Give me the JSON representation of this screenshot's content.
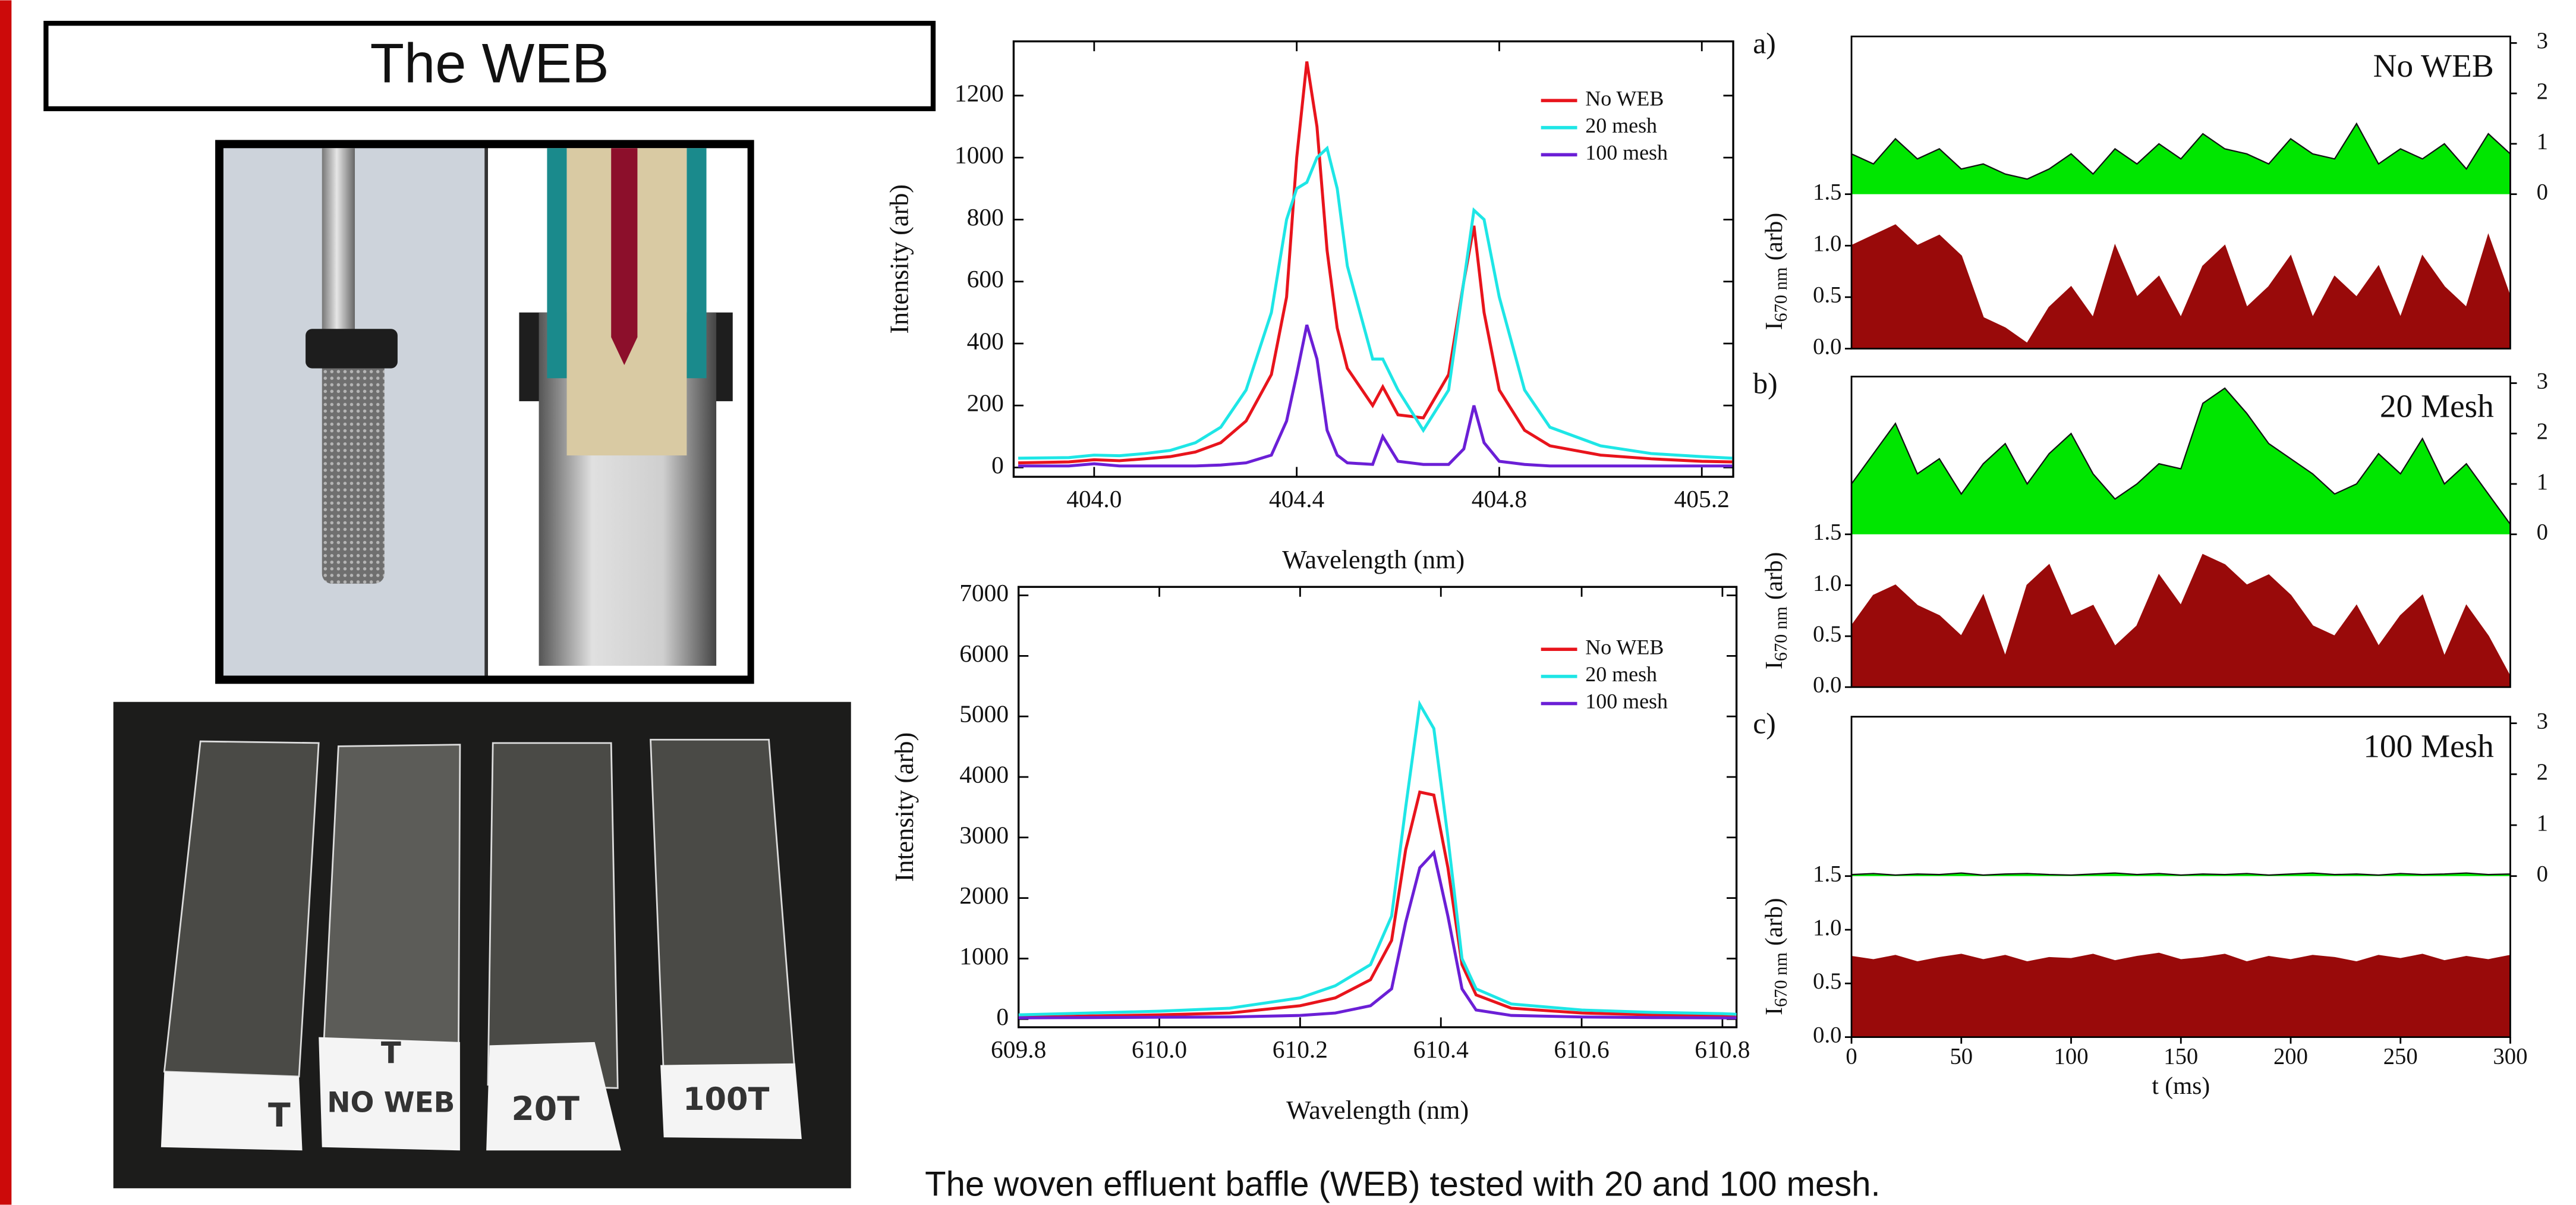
{
  "header": {
    "title": "The WEB"
  },
  "slide_top_label": "T",
  "slide_labels": [
    "T",
    "NO WEB",
    "20T",
    "100T"
  ],
  "caption": "The woven effluent baffle (WEB) tested with 20 and 100 mesh.",
  "chart_data": [
    {
      "type": "line",
      "x_label": "Wavelength (nm)",
      "y_label": "Intensity (arb)",
      "xlim": [
        403.841,
        405.262
      ],
      "ylim": [
        -30,
        1375
      ],
      "xticks": [
        {
          "value": 404,
          "label": "404.0"
        },
        404.4,
        404.8,
        405.2
      ],
      "yticks": [
        0,
        200,
        400,
        600,
        800,
        1000,
        1200
      ],
      "x": [
        403.85,
        403.95,
        404.0,
        404.05,
        404.1,
        404.15,
        404.2,
        404.25,
        404.3,
        404.35,
        404.38,
        404.4,
        404.42,
        404.44,
        404.46,
        404.48,
        404.5,
        404.55,
        404.57,
        404.6,
        404.65,
        404.7,
        404.73,
        404.75,
        404.77,
        404.8,
        404.85,
        404.9,
        405.0,
        405.1,
        405.2,
        405.26
      ],
      "series": [
        {
          "name": "No WEB",
          "color": "#e8141c",
          "values": [
            15,
            18,
            25,
            22,
            28,
            35,
            50,
            80,
            150,
            300,
            550,
            1000,
            1310,
            1100,
            700,
            450,
            320,
            200,
            260,
            170,
            160,
            300,
            600,
            780,
            500,
            250,
            120,
            70,
            40,
            28,
            20,
            18
          ]
        },
        {
          "name": "20 mesh",
          "color": "#1ee6e6",
          "values": [
            30,
            32,
            40,
            38,
            45,
            55,
            80,
            130,
            250,
            500,
            800,
            900,
            920,
            1000,
            1030,
            900,
            650,
            350,
            350,
            250,
            120,
            250,
            600,
            830,
            800,
            550,
            250,
            130,
            70,
            45,
            35,
            30
          ]
        },
        {
          "name": "100 mesh",
          "color": "#6b1fd6",
          "values": [
            5,
            5,
            12,
            5,
            5,
            5,
            5,
            8,
            15,
            40,
            150,
            300,
            460,
            350,
            120,
            40,
            15,
            10,
            100,
            20,
            10,
            10,
            60,
            200,
            80,
            20,
            10,
            5,
            5,
            5,
            5,
            5
          ]
        }
      ]
    },
    {
      "type": "line",
      "x_label": "Wavelength (nm)",
      "y_label": "Intensity (arb)",
      "xlim": [
        609.8,
        610.82
      ],
      "ylim": [
        -135,
        7140
      ],
      "xticks": [
        609.8,
        {
          "value": 610,
          "label": "610.0"
        },
        610.2,
        610.4,
        610.6,
        610.8
      ],
      "yticks": [
        0,
        1000,
        2000,
        3000,
        4000,
        5000,
        6000,
        7000
      ],
      "x": [
        609.8,
        609.9,
        610.0,
        610.1,
        610.2,
        610.25,
        610.3,
        610.33,
        610.35,
        610.37,
        610.39,
        610.41,
        610.43,
        610.45,
        610.5,
        610.6,
        610.7,
        610.8,
        610.82
      ],
      "series": [
        {
          "name": "No WEB",
          "color": "#e8141c",
          "values": [
            30,
            50,
            70,
            100,
            220,
            350,
            650,
            1300,
            2800,
            3750,
            3700,
            2500,
            900,
            400,
            180,
            100,
            70,
            50,
            50
          ]
        },
        {
          "name": "20 mesh",
          "color": "#1ee6e6",
          "values": [
            70,
            100,
            130,
            180,
            350,
            550,
            900,
            1700,
            3500,
            5200,
            4800,
            3000,
            1000,
            500,
            250,
            150,
            110,
            90,
            80
          ]
        },
        {
          "name": "100 mesh",
          "color": "#6b1fd6",
          "values": [
            20,
            25,
            30,
            35,
            60,
            100,
            220,
            500,
            1600,
            2500,
            2750,
            1700,
            500,
            150,
            60,
            35,
            25,
            20,
            20
          ]
        }
      ]
    },
    {
      "type": "area",
      "panel_label": "a)",
      "title": "No WEB",
      "y_label": "I",
      "y_label_sub": "670 nm",
      "y_label_unit": "(arb)",
      "xlim": [
        0,
        300
      ],
      "ylim": [
        0,
        1.5
      ],
      "yticks": [
        {
          "value": 0,
          "label": "0.0"
        },
        0.5,
        {
          "value": 1,
          "label": "1.0"
        },
        1.5
      ],
      "y2lim": [
        0,
        3
      ],
      "y2ticks": [
        0,
        1,
        2,
        3
      ],
      "x": [
        0,
        10,
        20,
        30,
        40,
        50,
        60,
        70,
        80,
        90,
        100,
        110,
        120,
        130,
        140,
        150,
        160,
        170,
        180,
        190,
        200,
        210,
        220,
        230,
        240,
        250,
        260,
        270,
        280,
        290,
        300
      ],
      "series": [
        {
          "color": "#00e600",
          "axis": "y2",
          "values": [
            0.8,
            0.6,
            1.1,
            0.7,
            0.9,
            0.5,
            0.6,
            0.4,
            0.3,
            0.5,
            0.8,
            0.4,
            0.9,
            0.6,
            1.0,
            0.7,
            1.2,
            0.9,
            0.8,
            0.6,
            1.1,
            0.8,
            0.7,
            1.4,
            0.6,
            0.9,
            0.7,
            1.0,
            0.5,
            1.2,
            0.8
          ]
        },
        {
          "color": "#990a0a",
          "values": [
            1.0,
            1.1,
            1.2,
            1.0,
            1.1,
            0.9,
            0.3,
            0.2,
            0.05,
            0.4,
            0.6,
            0.3,
            1.0,
            0.5,
            0.7,
            0.3,
            0.8,
            1.0,
            0.4,
            0.6,
            0.9,
            0.3,
            0.7,
            0.5,
            0.8,
            0.3,
            0.9,
            0.6,
            0.4,
            1.1,
            0.5
          ]
        }
      ]
    },
    {
      "type": "area",
      "panel_label": "b)",
      "title": "20 Mesh",
      "y_label": "I",
      "y_label_sub": "670 nm",
      "y_label_unit": "(arb)",
      "xlim": [
        0,
        300
      ],
      "ylim": [
        0,
        1.5
      ],
      "yticks": [
        {
          "value": 0,
          "label": "0.0"
        },
        0.5,
        {
          "value": 1,
          "label": "1.0"
        },
        1.5
      ],
      "y2lim": [
        0,
        3
      ],
      "y2ticks": [
        0,
        1,
        2,
        3
      ],
      "x": [
        0,
        10,
        20,
        30,
        40,
        50,
        60,
        70,
        80,
        90,
        100,
        110,
        120,
        130,
        140,
        150,
        160,
        170,
        180,
        190,
        200,
        210,
        220,
        230,
        240,
        250,
        260,
        270,
        280,
        290,
        300
      ],
      "series": [
        {
          "color": "#00e600",
          "axis": "y2",
          "values": [
            1.0,
            1.6,
            2.2,
            1.2,
            1.5,
            0.8,
            1.4,
            1.8,
            1.0,
            1.6,
            2.0,
            1.2,
            0.7,
            1.0,
            1.4,
            1.3,
            2.6,
            2.9,
            2.4,
            1.8,
            1.5,
            1.2,
            0.8,
            1.0,
            1.6,
            1.2,
            1.9,
            1.0,
            1.4,
            0.8,
            0.2
          ]
        },
        {
          "color": "#990a0a",
          "values": [
            0.6,
            0.9,
            1.0,
            0.8,
            0.7,
            0.5,
            0.9,
            0.3,
            1.0,
            1.2,
            0.7,
            0.8,
            0.4,
            0.6,
            1.1,
            0.8,
            1.3,
            1.2,
            1.0,
            1.1,
            0.9,
            0.6,
            0.5,
            0.8,
            0.4,
            0.7,
            0.9,
            0.3,
            0.8,
            0.5,
            0.1
          ]
        }
      ]
    },
    {
      "type": "area",
      "panel_label": "c)",
      "title": "100 Mesh",
      "y_label": "I",
      "y_label_sub": "670 nm",
      "y_label_unit": "(arb)",
      "x_label": "t (ms)",
      "xlim": [
        0,
        300
      ],
      "xticks": [
        0,
        50,
        100,
        150,
        200,
        250,
        300
      ],
      "ylim": [
        0,
        1.5
      ],
      "yticks": [
        {
          "value": 0,
          "label": "0.0"
        },
        0.5,
        {
          "value": 1,
          "label": "1.0"
        },
        1.5
      ],
      "y2lim": [
        0,
        3
      ],
      "y2ticks": [
        0,
        1,
        2,
        3
      ],
      "x": [
        0,
        10,
        20,
        30,
        40,
        50,
        60,
        70,
        80,
        90,
        100,
        110,
        120,
        130,
        140,
        150,
        160,
        170,
        180,
        190,
        200,
        210,
        220,
        230,
        240,
        250,
        260,
        270,
        280,
        290,
        300
      ],
      "series": [
        {
          "color": "#00e600",
          "axis": "y2",
          "values": [
            0.03,
            0.05,
            0.02,
            0.04,
            0.03,
            0.06,
            0.02,
            0.04,
            0.05,
            0.03,
            0.02,
            0.04,
            0.06,
            0.03,
            0.05,
            0.02,
            0.04,
            0.03,
            0.05,
            0.02,
            0.04,
            0.06,
            0.03,
            0.04,
            0.02,
            0.05,
            0.03,
            0.04,
            0.06,
            0.03,
            0.04
          ]
        },
        {
          "color": "#990a0a",
          "values": [
            0.75,
            0.72,
            0.76,
            0.7,
            0.74,
            0.77,
            0.72,
            0.76,
            0.7,
            0.74,
            0.73,
            0.77,
            0.71,
            0.75,
            0.78,
            0.72,
            0.74,
            0.77,
            0.7,
            0.75,
            0.72,
            0.76,
            0.74,
            0.7,
            0.76,
            0.73,
            0.77,
            0.71,
            0.75,
            0.72,
            0.76
          ]
        }
      ]
    }
  ]
}
